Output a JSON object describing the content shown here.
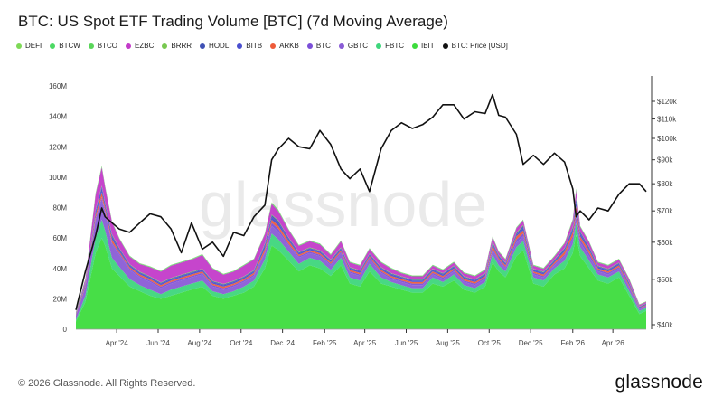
{
  "page": {
    "title": "BTC: US Spot ETF Trading Volume [BTC] (7d Moving Average)",
    "copyright": "© 2026 Glassnode. All Rights Reserved.",
    "brand": "glassnode",
    "watermark": "glassnode"
  },
  "legend": [
    {
      "label": "DEFI",
      "color": "#7ed957",
      "icon": "dot-icon"
    },
    {
      "label": "BTCW",
      "color": "#4cd964",
      "icon": "dot-icon"
    },
    {
      "label": "BTCO",
      "color": "#5ad65a",
      "icon": "dot-icon"
    },
    {
      "label": "EZBC",
      "color": "#c33bc9",
      "icon": "dot-icon"
    },
    {
      "label": "BRRR",
      "color": "#78c850",
      "icon": "dot-icon"
    },
    {
      "label": "HODL",
      "color": "#3f51b5",
      "icon": "dot-icon"
    },
    {
      "label": "BITB",
      "color": "#4a4fcf",
      "icon": "dot-icon"
    },
    {
      "label": "ARKB",
      "color": "#ee5b3a",
      "icon": "dot-icon"
    },
    {
      "label": "BTC",
      "color": "#7b4fd8",
      "icon": "dot-icon"
    },
    {
      "label": "GBTC",
      "color": "#8a5cd6",
      "icon": "dot-icon"
    },
    {
      "label": "FBTC",
      "color": "#3ed67c",
      "icon": "dot-icon"
    },
    {
      "label": "IBIT",
      "color": "#3ddc3d",
      "icon": "dot-icon"
    },
    {
      "label": "BTC: Price [USD]",
      "color": "#111111",
      "icon": "dot-icon"
    }
  ],
  "chart_data": {
    "type": "area",
    "stacked": true,
    "title": "BTC: US Spot ETF Trading Volume [BTC] (7d Moving Average)",
    "x_tick_labels": [
      "Apr '24",
      "Jun '24",
      "Aug '24",
      "Oct '24",
      "Dec '24",
      "Feb '25",
      "Apr '25",
      "Jun '25",
      "Aug '25",
      "Oct '25",
      "Dec '25",
      "Feb '26",
      "Apr '26"
    ],
    "y_left": {
      "ticks": [
        "0",
        "20M",
        "40M",
        "60M",
        "80M",
        "100M",
        "120M",
        "140M",
        "160M"
      ],
      "range": [
        0,
        160000000
      ]
    },
    "y_right": {
      "ticks": [
        "$40k",
        "$50k",
        "$60k",
        "$70k",
        "$80k",
        "$90k",
        "$100k",
        "$110k",
        "$120k"
      ],
      "range": [
        40000,
        120000
      ],
      "scale": "log"
    },
    "x": [
      "2024-02-01",
      "2024-02-15",
      "2024-03-01",
      "2024-03-10",
      "2024-03-15",
      "2024-03-25",
      "2024-04-05",
      "2024-04-20",
      "2024-05-05",
      "2024-05-20",
      "2024-06-05",
      "2024-06-20",
      "2024-07-05",
      "2024-07-20",
      "2024-08-05",
      "2024-08-20",
      "2024-09-05",
      "2024-09-20",
      "2024-10-05",
      "2024-10-20",
      "2024-11-05",
      "2024-11-15",
      "2024-11-25",
      "2024-12-10",
      "2024-12-25",
      "2025-01-10",
      "2025-01-25",
      "2025-02-10",
      "2025-02-25",
      "2025-03-10",
      "2025-03-25",
      "2025-04-08",
      "2025-04-25",
      "2025-05-10",
      "2025-05-25",
      "2025-06-10",
      "2025-06-25",
      "2025-07-10",
      "2025-07-25",
      "2025-08-10",
      "2025-08-25",
      "2025-09-10",
      "2025-09-25",
      "2025-10-06",
      "2025-10-15",
      "2025-10-25",
      "2025-11-10",
      "2025-11-20",
      "2025-12-05",
      "2025-12-20",
      "2026-01-05",
      "2026-01-20",
      "2026-02-01",
      "2026-02-06",
      "2026-02-12",
      "2026-02-25",
      "2026-03-10",
      "2026-03-25",
      "2026-04-10",
      "2026-04-25",
      "2026-05-10",
      "2026-05-20"
    ],
    "series": [
      {
        "name": "IBIT",
        "color": "#3ddc3d",
        "values": [
          5,
          18,
          50,
          60,
          55,
          40,
          35,
          28,
          25,
          22,
          20,
          22,
          24,
          26,
          28,
          22,
          20,
          22,
          24,
          28,
          40,
          55,
          52,
          45,
          38,
          42,
          40,
          35,
          42,
          30,
          28,
          38,
          30,
          28,
          26,
          24,
          24,
          30,
          28,
          32,
          26,
          24,
          28,
          44,
          38,
          34,
          48,
          52,
          30,
          28,
          36,
          40,
          50,
          62,
          48,
          40,
          32,
          30,
          34,
          22,
          10,
          12
        ]
      },
      {
        "name": "FBTC",
        "color": "#3ed67c",
        "values": [
          1,
          4,
          10,
          12,
          10,
          7,
          6,
          5,
          4,
          4,
          3,
          4,
          4,
          4,
          4,
          3,
          3,
          3,
          4,
          4,
          6,
          8,
          7,
          6,
          5,
          5,
          5,
          4,
          5,
          4,
          4,
          5,
          4,
          3,
          3,
          3,
          3,
          4,
          3,
          4,
          3,
          3,
          3,
          5,
          4,
          4,
          6,
          6,
          4,
          4,
          4,
          5,
          6,
          8,
          6,
          5,
          4,
          4,
          4,
          3,
          2,
          2
        ]
      },
      {
        "name": "GBTC",
        "color": "#8a5cd6",
        "values": [
          3,
          6,
          12,
          14,
          12,
          9,
          8,
          6,
          5,
          5,
          4,
          4,
          4,
          4,
          4,
          3,
          3,
          3,
          3,
          3,
          4,
          5,
          5,
          4,
          4,
          3,
          3,
          3,
          3,
          3,
          3,
          3,
          3,
          2,
          2,
          2,
          2,
          2,
          2,
          2,
          2,
          2,
          2,
          3,
          3,
          2,
          3,
          3,
          2,
          2,
          2,
          3,
          3,
          4,
          3,
          3,
          2,
          2,
          2,
          2,
          1,
          1
        ]
      },
      {
        "name": "BTC",
        "color": "#7b4fd8",
        "values": [
          0,
          0,
          1,
          1,
          1,
          1,
          1,
          1,
          1,
          1,
          1,
          1,
          1,
          1,
          1,
          1,
          1,
          1,
          1,
          1,
          1,
          2,
          2,
          1,
          1,
          1,
          1,
          1,
          1,
          1,
          1,
          1,
          1,
          1,
          1,
          1,
          1,
          1,
          1,
          1,
          1,
          1,
          1,
          1,
          1,
          1,
          2,
          2,
          1,
          1,
          1,
          1,
          2,
          3,
          2,
          2,
          1,
          1,
          1,
          1,
          0.5,
          0.5
        ]
      },
      {
        "name": "ARKB",
        "color": "#ee5b3a",
        "values": [
          0.5,
          1,
          2,
          3,
          2,
          2,
          1,
          1,
          1,
          1,
          1,
          1,
          1,
          1,
          1,
          1,
          1,
          1,
          1,
          1,
          2,
          2,
          2,
          2,
          1,
          1,
          1,
          1,
          1,
          1,
          1,
          1,
          1,
          1,
          1,
          1,
          1,
          1,
          1,
          1,
          1,
          1,
          1,
          2,
          1,
          1,
          2,
          2,
          1,
          1,
          1,
          2,
          3,
          4,
          2,
          2,
          1,
          1,
          1,
          1,
          0.5,
          0.5
        ]
      },
      {
        "name": "BITB",
        "color": "#4a4fcf",
        "values": [
          0.5,
          1,
          2,
          3,
          2,
          2,
          1,
          1,
          1,
          1,
          1,
          1,
          1,
          1,
          1,
          1,
          1,
          1,
          1,
          1,
          2,
          2,
          2,
          1,
          1,
          1,
          1,
          1,
          1,
          1,
          1,
          1,
          1,
          1,
          1,
          1,
          1,
          1,
          1,
          1,
          1,
          1,
          1,
          1,
          1,
          1,
          1,
          2,
          1,
          1,
          1,
          1,
          2,
          3,
          2,
          1,
          1,
          1,
          1,
          1,
          0.5,
          0.5
        ]
      },
      {
        "name": "HODL",
        "color": "#3f51b5",
        "values": [
          0.3,
          0.5,
          1,
          1,
          1,
          1,
          1,
          0.5,
          0.5,
          0.5,
          0.5,
          0.5,
          0.5,
          0.5,
          0.5,
          0.5,
          0.5,
          0.5,
          0.5,
          0.5,
          1,
          1,
          1,
          1,
          0.5,
          0.5,
          0.5,
          0.5,
          0.5,
          0.5,
          0.5,
          0.5,
          0.5,
          0.5,
          0.5,
          0.5,
          0.5,
          0.5,
          0.5,
          0.5,
          0.5,
          0.5,
          0.5,
          1,
          0.5,
          0.5,
          1,
          1,
          0.5,
          0.5,
          0.5,
          1,
          1,
          2,
          1,
          1,
          0.5,
          0.5,
          0.5,
          0.5,
          0.3,
          0.3
        ]
      },
      {
        "name": "BRRR",
        "color": "#78c850",
        "values": [
          0.2,
          0.3,
          0.5,
          0.5,
          0.5,
          0.5,
          0.3,
          0.3,
          0.3,
          0.3,
          0.3,
          0.3,
          0.3,
          0.3,
          0.3,
          0.3,
          0.3,
          0.3,
          0.3,
          0.3,
          0.5,
          0.5,
          0.5,
          0.3,
          0.3,
          0.3,
          0.3,
          0.3,
          0.3,
          0.3,
          0.3,
          0.3,
          0.3,
          0.3,
          0.3,
          0.3,
          0.3,
          0.3,
          0.3,
          0.3,
          0.3,
          0.3,
          0.3,
          0.5,
          0.3,
          0.3,
          0.5,
          0.5,
          0.3,
          0.3,
          0.3,
          0.3,
          0.5,
          0.5,
          0.3,
          0.3,
          0.3,
          0.3,
          0.3,
          0.3,
          0.2,
          0.2
        ]
      },
      {
        "name": "EZBC",
        "color": "#c33bc9",
        "values": [
          0.5,
          2,
          10,
          12,
          10,
          8,
          6,
          5,
          5,
          6,
          7,
          8,
          8,
          8,
          9,
          8,
          6,
          6,
          7,
          7,
          6,
          7,
          6,
          5,
          4,
          4,
          4,
          3,
          4,
          3,
          3,
          3,
          3,
          3,
          2,
          2,
          2,
          2,
          2,
          2,
          2,
          2,
          2,
          3,
          2,
          2,
          3,
          3,
          2,
          2,
          2,
          3,
          4,
          5,
          3,
          3,
          2,
          2,
          2,
          2,
          1,
          1
        ]
      },
      {
        "name": "BTCO",
        "color": "#5ad65a",
        "values": [
          0.2,
          0.3,
          0.5,
          0.5,
          0.5,
          0.3,
          0.3,
          0.3,
          0.3,
          0.3,
          0.3,
          0.3,
          0.3,
          0.3,
          0.3,
          0.3,
          0.3,
          0.3,
          0.3,
          0.3,
          0.3,
          0.5,
          0.5,
          0.3,
          0.3,
          0.3,
          0.3,
          0.3,
          0.3,
          0.3,
          0.3,
          0.3,
          0.3,
          0.3,
          0.3,
          0.3,
          0.3,
          0.3,
          0.3,
          0.3,
          0.3,
          0.3,
          0.3,
          0.3,
          0.3,
          0.3,
          0.3,
          0.3,
          0.3,
          0.3,
          0.3,
          0.3,
          0.5,
          0.5,
          0.3,
          0.3,
          0.3,
          0.3,
          0.3,
          0.3,
          0.2,
          0.2
        ]
      },
      {
        "name": "BTCW",
        "color": "#4cd964",
        "values": [
          0.1,
          0.2,
          0.3,
          0.3,
          0.3,
          0.2,
          0.2,
          0.2,
          0.2,
          0.2,
          0.2,
          0.2,
          0.2,
          0.2,
          0.2,
          0.2,
          0.2,
          0.2,
          0.2,
          0.2,
          0.2,
          0.3,
          0.3,
          0.2,
          0.2,
          0.2,
          0.2,
          0.2,
          0.2,
          0.2,
          0.2,
          0.2,
          0.2,
          0.2,
          0.2,
          0.2,
          0.2,
          0.2,
          0.2,
          0.2,
          0.2,
          0.2,
          0.2,
          0.2,
          0.2,
          0.2,
          0.2,
          0.2,
          0.2,
          0.2,
          0.2,
          0.2,
          0.3,
          0.3,
          0.2,
          0.2,
          0.2,
          0.2,
          0.2,
          0.2,
          0.1,
          0.1
        ]
      },
      {
        "name": "DEFI",
        "color": "#7ed957",
        "values": [
          0.1,
          0.1,
          0.2,
          0.2,
          0.2,
          0.1,
          0.1,
          0.1,
          0.1,
          0.1,
          0.1,
          0.1,
          0.1,
          0.1,
          0.1,
          0.1,
          0.1,
          0.1,
          0.1,
          0.1,
          0.1,
          0.2,
          0.2,
          0.1,
          0.1,
          0.1,
          0.1,
          0.1,
          0.1,
          0.1,
          0.1,
          0.1,
          0.1,
          0.1,
          0.1,
          0.1,
          0.1,
          0.1,
          0.1,
          0.1,
          0.1,
          0.1,
          0.1,
          0.1,
          0.1,
          0.1,
          0.1,
          0.1,
          0.1,
          0.1,
          0.1,
          0.1,
          0.2,
          0.2,
          0.1,
          0.1,
          0.1,
          0.1,
          0.1,
          0.1,
          0.1,
          0.1
        ]
      }
    ],
    "value_unit": "M",
    "price_series": {
      "name": "BTC: Price [USD]",
      "color": "#111111",
      "axis": "right",
      "values": [
        43000,
        52000,
        62000,
        71000,
        68000,
        66000,
        64000,
        63000,
        66000,
        69000,
        68000,
        64000,
        57000,
        66000,
        58000,
        60000,
        56000,
        63000,
        62000,
        68000,
        72000,
        90000,
        95000,
        100000,
        96000,
        95000,
        104000,
        97000,
        86000,
        82000,
        86000,
        77000,
        95000,
        104000,
        108000,
        105000,
        107000,
        111000,
        118000,
        118000,
        110000,
        114000,
        113000,
        124000,
        112000,
        111000,
        102000,
        88000,
        92000,
        88000,
        93000,
        89000,
        78000,
        68000,
        70000,
        67000,
        71000,
        70000,
        76000,
        80000,
        80000,
        77000
      ]
    }
  }
}
